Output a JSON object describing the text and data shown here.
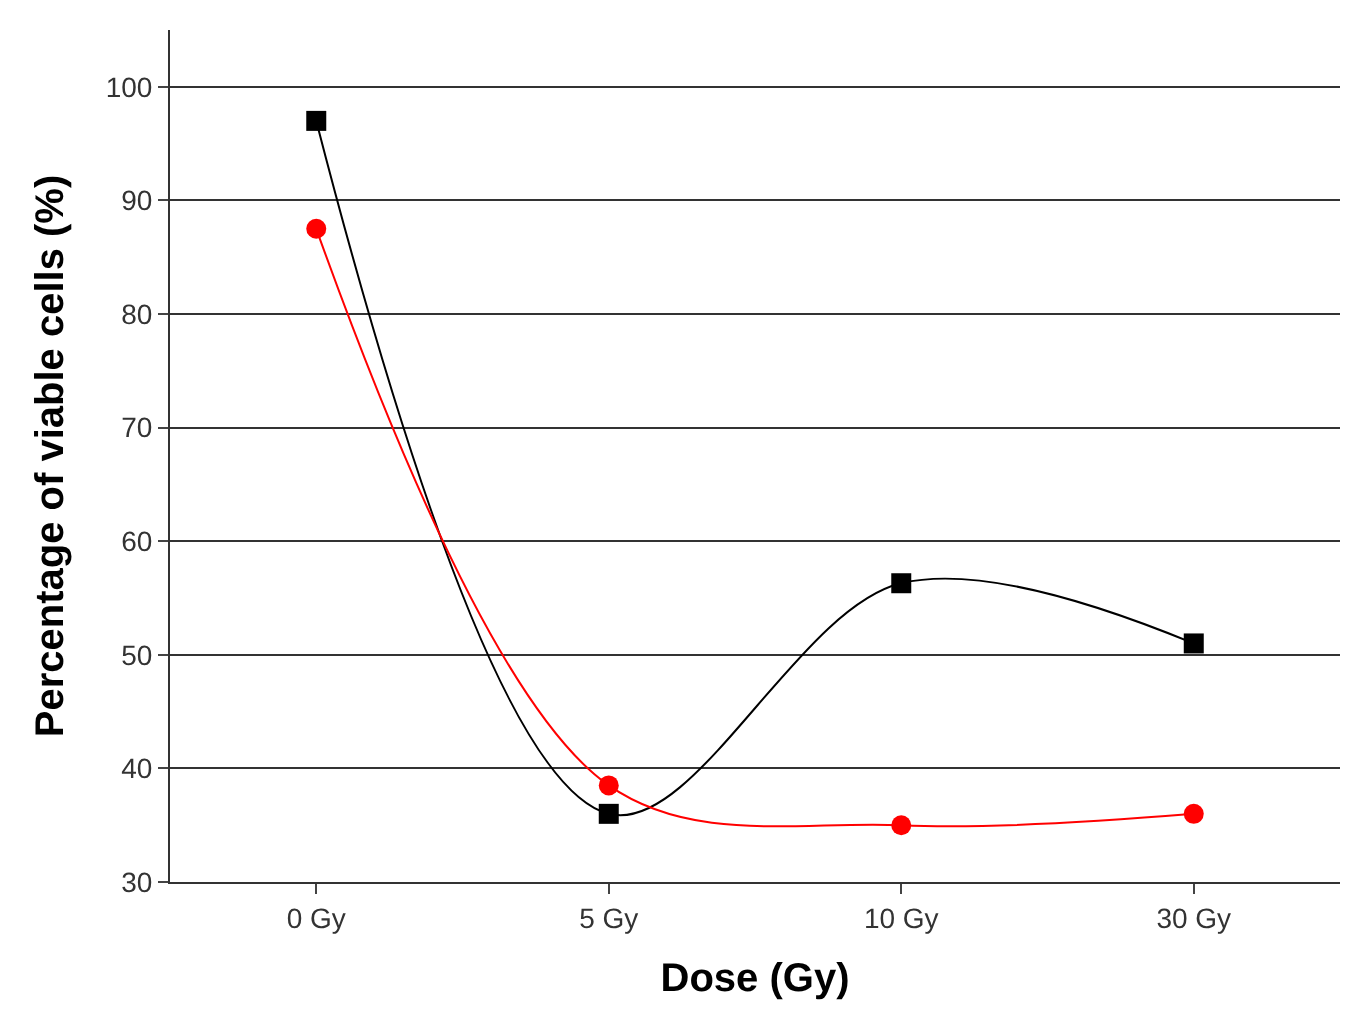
{
  "chart_data": {
    "type": "line",
    "xlabel": "Dose (Gy)",
    "ylabel": "Percentage of viable cells (%)",
    "categories": [
      "0 Gy",
      "5 Gy",
      "10 Gy",
      "30 Gy"
    ],
    "series": [
      {
        "color": "#000000",
        "marker": "square",
        "values": [
          97,
          36,
          56.3,
          51
        ]
      },
      {
        "color": "#ff0000",
        "marker": "circle",
        "values": [
          87.5,
          38.5,
          35,
          36
        ]
      }
    ],
    "ylim": [
      30,
      105
    ],
    "yticks": [
      30,
      40,
      50,
      60,
      70,
      80,
      90,
      100
    ],
    "grid": "y"
  }
}
